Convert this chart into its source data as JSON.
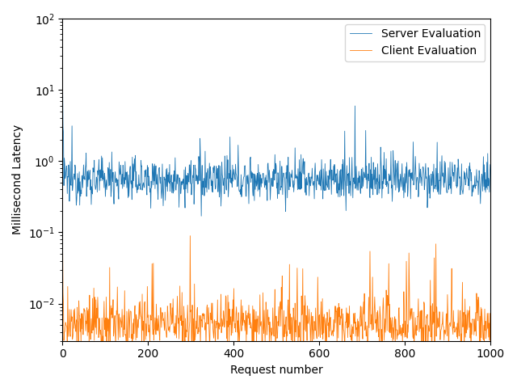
{
  "n_points": 1000,
  "server_base_log": -0.598,
  "server_noise_sigma": 0.35,
  "client_base_log": -5.3,
  "client_noise_sigma": 0.4,
  "server_color": "#1f77b4",
  "client_color": "#ff7f0e",
  "xlabel": "Request number",
  "ylabel": "Millisecond Latency",
  "server_label": "Server Evaluation",
  "client_label": "Client Evaluation",
  "ylim_bottom": 0.003,
  "ylim_top": 100,
  "xlim_left": 0,
  "xlim_right": 1000,
  "linewidth": 0.6,
  "figwidth": 6.4,
  "figheight": 4.8,
  "dpi": 100
}
